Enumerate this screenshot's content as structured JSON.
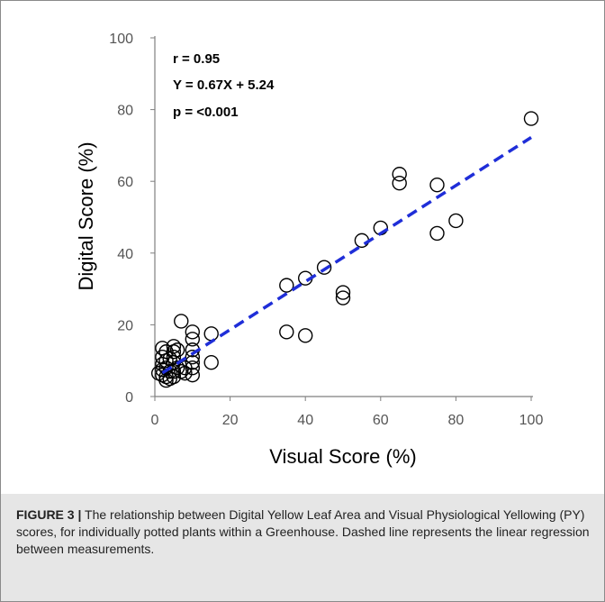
{
  "chart_data": {
    "type": "scatter",
    "xlabel": "Visual Score (%)",
    "ylabel": "Digital Score (%)",
    "xlim": [
      0,
      100
    ],
    "ylim": [
      0,
      100
    ],
    "xticks": [
      0,
      20,
      40,
      60,
      80,
      100
    ],
    "yticks": [
      0,
      20,
      40,
      60,
      80,
      100
    ],
    "grid": false,
    "annotations": [
      "r = 0.95",
      "Y = 0.67X + 5.24",
      "p = <0.001"
    ],
    "regression": {
      "slope": 0.67,
      "intercept": 5.24,
      "x_range": [
        2,
        100
      ],
      "color": "#1f2ed8",
      "style": "dashed"
    },
    "x": [
      1,
      2,
      2,
      2,
      2,
      2,
      3,
      3,
      3,
      3,
      3,
      4,
      4,
      4,
      5,
      5,
      5,
      5,
      5,
      5,
      6,
      6,
      7,
      7,
      8,
      8,
      10,
      10,
      10,
      10,
      10,
      10,
      10,
      15,
      15,
      35,
      35,
      40,
      40,
      45,
      50,
      50,
      55,
      60,
      65,
      65,
      75,
      75,
      80,
      100
    ],
    "y": [
      6.5,
      13.5,
      11,
      9,
      7.5,
      6,
      12.5,
      10,
      8,
      5.5,
      4.5,
      10.5,
      7,
      5,
      14,
      12.5,
      11,
      9.5,
      7,
      5.5,
      13,
      8,
      21,
      7,
      8,
      6.5,
      18,
      16,
      13,
      11,
      9.5,
      8,
      6,
      17.5,
      9.5,
      31,
      18,
      33,
      17,
      36,
      29,
      27.5,
      43.5,
      47,
      62,
      59.5,
      59,
      45.5,
      49,
      77.5
    ]
  },
  "caption": {
    "label": "FIGURE 3 |",
    "text": "The relationship between Digital Yellow Leaf Area and Visual Physiological Yellowing (PY) scores, for individually potted plants within a Greenhouse. Dashed line represents the linear regression between measurements."
  },
  "colors": {
    "points": "#000000",
    "axis": "#7f7f7f",
    "regression": "#1f2ed8",
    "caption_bg": "#e6e6e6"
  }
}
